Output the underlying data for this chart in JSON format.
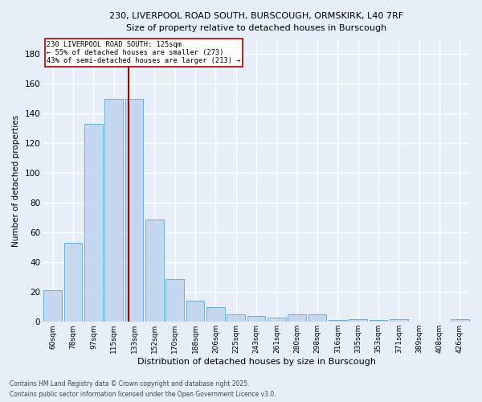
{
  "title_line1": "230, LIVERPOOL ROAD SOUTH, BURSCOUGH, ORMSKIRK, L40 7RF",
  "title_line2": "Size of property relative to detached houses in Burscough",
  "xlabel": "Distribution of detached houses by size in Burscough",
  "ylabel": "Number of detached properties",
  "categories": [
    "60sqm",
    "78sqm",
    "97sqm",
    "115sqm",
    "133sqm",
    "152sqm",
    "170sqm",
    "188sqm",
    "206sqm",
    "225sqm",
    "243sqm",
    "261sqm",
    "280sqm",
    "298sqm",
    "316sqm",
    "335sqm",
    "353sqm",
    "371sqm",
    "389sqm",
    "408sqm",
    "426sqm"
  ],
  "values": [
    21,
    53,
    133,
    150,
    150,
    69,
    29,
    14,
    10,
    5,
    4,
    3,
    5,
    5,
    1,
    2,
    1,
    2,
    0,
    0,
    2
  ],
  "bar_color": "#c5d8ef",
  "bar_edge_color": "#6baed6",
  "vline_x": 3.72,
  "vline_color": "#aa0000",
  "vline_label": "230 LIVERPOOL ROAD SOUTH: 125sqm",
  "annotation_line2": "← 55% of detached houses are smaller (273)",
  "annotation_line3": "43% of semi-detached houses are larger (213) →",
  "annotation_box_color": "#ffffff",
  "annotation_box_edge": "#aa0000",
  "background_color": "#e8eef8",
  "grid_color": "#ffffff",
  "ylim": [
    0,
    190
  ],
  "yticks": [
    0,
    20,
    40,
    60,
    80,
    100,
    120,
    140,
    160,
    180
  ],
  "footnote_line1": "Contains HM Land Registry data © Crown copyright and database right 2025.",
  "footnote_line2": "Contains public sector information licensed under the Open Government Licence v3.0."
}
